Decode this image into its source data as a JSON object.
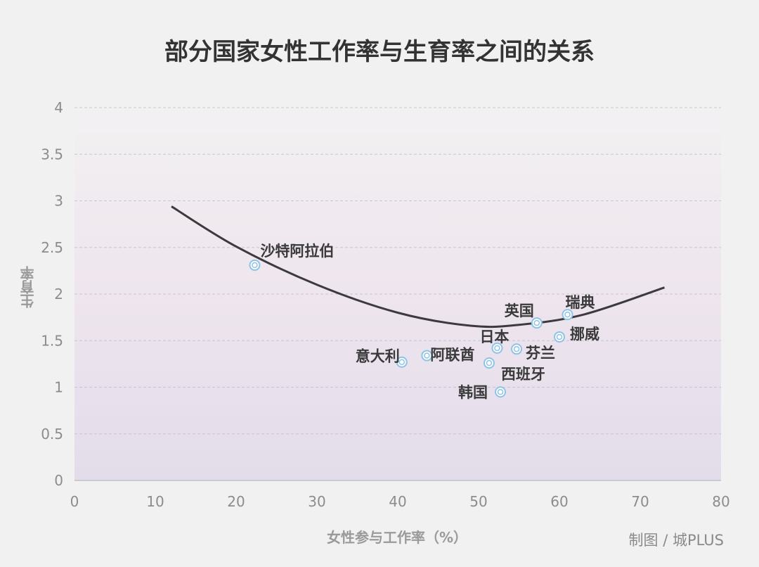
{
  "title": "部分国家女性工作率与生育率之间的关系",
  "credit": "制图 / 城PLUS",
  "chart_data": {
    "type": "scatter",
    "title": "部分国家女性工作率与生育率之间的关系",
    "xlabel": "女性参与工作率（%）",
    "ylabel": "生育率",
    "xlim": [
      0,
      80
    ],
    "ylim": [
      0,
      4
    ],
    "x_ticks": [
      "0",
      "10",
      "20",
      "30",
      "40",
      "50",
      "60",
      "70",
      "80"
    ],
    "y_ticks": [
      "0",
      "0.5",
      "1",
      "1.5",
      "2",
      "2.5",
      "3",
      "3.5",
      "4"
    ],
    "grid": true,
    "points": [
      {
        "label": "沙特阿拉伯",
        "x": 22.3,
        "y": 2.31
      },
      {
        "label": "意大利",
        "x": 40.5,
        "y": 1.27
      },
      {
        "label": "阿联酋",
        "x": 43.6,
        "y": 1.34
      },
      {
        "label": "西班牙",
        "x": 51.3,
        "y": 1.26
      },
      {
        "label": "日本",
        "x": 52.3,
        "y": 1.42
      },
      {
        "label": "韩国",
        "x": 52.7,
        "y": 0.95
      },
      {
        "label": "芬兰",
        "x": 54.7,
        "y": 1.41
      },
      {
        "label": "英国",
        "x": 57.2,
        "y": 1.69
      },
      {
        "label": "挪威",
        "x": 60.0,
        "y": 1.54
      },
      {
        "label": "瑞典",
        "x": 61.0,
        "y": 1.78
      }
    ],
    "trend_line": {
      "type": "quadratic",
      "points": [
        {
          "x": 12,
          "y": 2.94
        },
        {
          "x": 20,
          "y": 2.51
        },
        {
          "x": 30,
          "y": 2.1
        },
        {
          "x": 40,
          "y": 1.8
        },
        {
          "x": 49,
          "y": 1.66
        },
        {
          "x": 55,
          "y": 1.67
        },
        {
          "x": 63,
          "y": 1.78
        },
        {
          "x": 73,
          "y": 2.07
        }
      ]
    }
  }
}
